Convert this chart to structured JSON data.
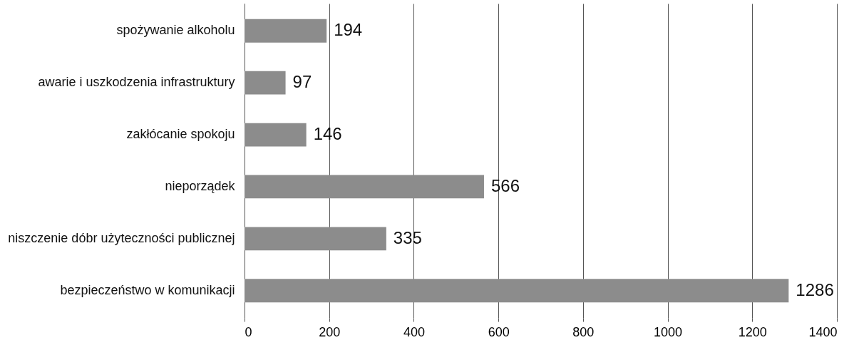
{
  "chart_data": {
    "type": "bar",
    "orientation": "horizontal",
    "categories": [
      "spożywanie alkoholu",
      "awarie i uszkodzenia infrastruktury",
      "zakłócanie spokoju",
      "nieporządek",
      "niszczenie dóbr użyteczności publicznej",
      "bezpieczeństwo w komunikacji"
    ],
    "values": [
      194,
      97,
      146,
      566,
      335,
      1286
    ],
    "color": "#8c8c8c",
    "xlim": [
      0,
      1400
    ],
    "xticks": [
      0,
      200,
      400,
      600,
      800,
      1000,
      1200,
      1400
    ],
    "grid": "x",
    "data_labels": true
  }
}
